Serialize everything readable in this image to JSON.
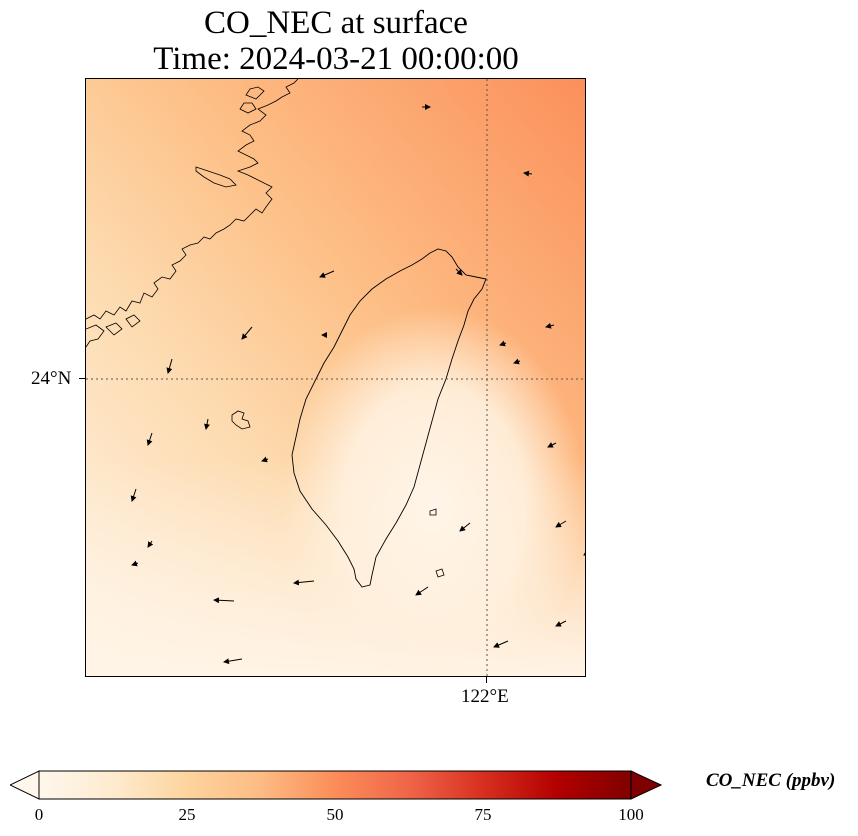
{
  "title": {
    "line1": "CO_NEC at surface",
    "line2": "Time: 2024-03-21 00:00:00"
  },
  "map": {
    "projection": "PlateCarree",
    "gridlines": "dotted",
    "latitude_label": "24°N",
    "longitude_label": "122°E",
    "coastline_color": "#000000",
    "wind_vectors_shown": true
  },
  "colorbar": {
    "label": "CO_NEC (ppbv)",
    "colormap": "OrRd",
    "min": 0,
    "max": 100,
    "ticks": [
      "0",
      "25",
      "50",
      "75",
      "100"
    ],
    "extend": "both",
    "colors": {
      "low": "#fff7ec",
      "mid_low": "#fdd49e",
      "mid": "#fc8d59",
      "mid_high": "#d7301f",
      "high": "#7f0000"
    }
  }
}
